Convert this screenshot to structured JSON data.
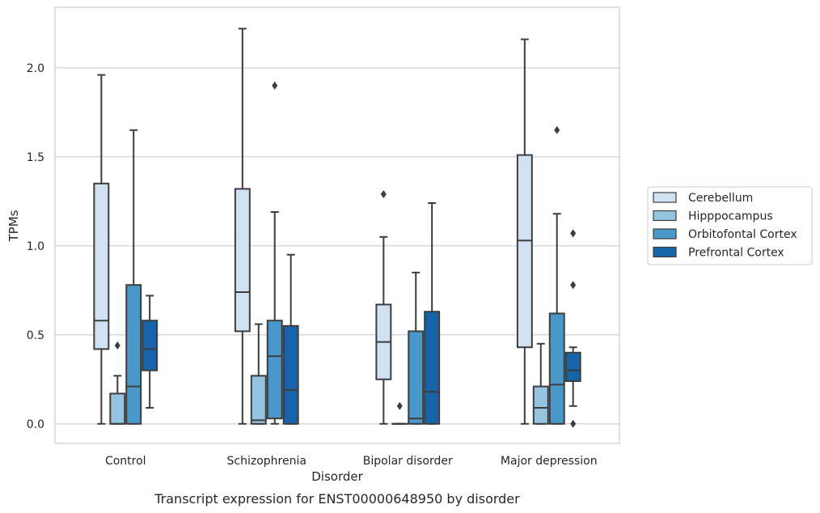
{
  "chart_data": {
    "type": "boxplot",
    "caption": "Transcript expression for ENST00000648950 by disorder",
    "xlabel": "Disorder",
    "ylabel": "TPMs",
    "ylim": [
      -0.11,
      2.34
    ],
    "yticks": [
      0.0,
      0.5,
      1.0,
      1.5,
      2.0
    ],
    "ytick_labels": [
      "0.0",
      "0.5",
      "1.0",
      "1.5",
      "2.0"
    ],
    "grid": "horizontal",
    "legend_position": "right",
    "categories": [
      "Control",
      "Schizophrenia",
      "Bipolar disorder",
      "Major depression"
    ],
    "series": [
      {
        "name": "Cerebellum",
        "color": "#d0e1f2",
        "boxes": [
          {
            "whisker_low": 0.0,
            "q1": 0.42,
            "median": 0.58,
            "q3": 1.35,
            "whisker_high": 1.96,
            "outliers": []
          },
          {
            "whisker_low": 0.0,
            "q1": 0.52,
            "median": 0.74,
            "q3": 1.32,
            "whisker_high": 2.22,
            "outliers": []
          },
          {
            "whisker_low": 0.0,
            "q1": 0.25,
            "median": 0.46,
            "q3": 0.67,
            "whisker_high": 1.05,
            "outliers": [
              1.29
            ]
          },
          {
            "whisker_low": 0.0,
            "q1": 0.43,
            "median": 1.03,
            "q3": 1.51,
            "whisker_high": 2.16,
            "outliers": []
          }
        ]
      },
      {
        "name": "Hipppocampus",
        "color": "#94c4df",
        "boxes": [
          {
            "whisker_low": 0.0,
            "q1": 0.0,
            "median": 0.0,
            "q3": 0.17,
            "whisker_high": 0.27,
            "outliers": [
              0.44
            ]
          },
          {
            "whisker_low": 0.0,
            "q1": 0.0,
            "median": 0.02,
            "q3": 0.27,
            "whisker_high": 0.56,
            "outliers": []
          },
          {
            "whisker_low": 0.0,
            "q1": 0.0,
            "median": 0.0,
            "q3": 0.0,
            "whisker_high": 0.0,
            "outliers": [
              0.1
            ]
          },
          {
            "whisker_low": 0.0,
            "q1": 0.0,
            "median": 0.09,
            "q3": 0.21,
            "whisker_high": 0.45,
            "outliers": []
          }
        ]
      },
      {
        "name": "Orbitofontal Cortex",
        "color": "#4a98c9",
        "boxes": [
          {
            "whisker_low": 0.0,
            "q1": 0.0,
            "median": 0.21,
            "q3": 0.78,
            "whisker_high": 1.65,
            "outliers": []
          },
          {
            "whisker_low": 0.0,
            "q1": 0.03,
            "median": 0.38,
            "q3": 0.58,
            "whisker_high": 1.19,
            "outliers": [
              1.9
            ]
          },
          {
            "whisker_low": 0.0,
            "q1": 0.0,
            "median": 0.03,
            "q3": 0.52,
            "whisker_high": 0.85,
            "outliers": []
          },
          {
            "whisker_low": 0.0,
            "q1": 0.0,
            "median": 0.22,
            "q3": 0.62,
            "whisker_high": 1.18,
            "outliers": [
              1.65
            ]
          }
        ]
      },
      {
        "name": "Prefrontal Cortex",
        "color": "#1764ab",
        "boxes": [
          {
            "whisker_low": 0.09,
            "q1": 0.3,
            "median": 0.42,
            "q3": 0.58,
            "whisker_high": 0.72,
            "outliers": []
          },
          {
            "whisker_low": 0.0,
            "q1": 0.0,
            "median": 0.19,
            "q3": 0.55,
            "whisker_high": 0.95,
            "outliers": []
          },
          {
            "whisker_low": 0.0,
            "q1": 0.0,
            "median": 0.18,
            "q3": 0.63,
            "whisker_high": 1.24,
            "outliers": []
          },
          {
            "whisker_low": 0.1,
            "q1": 0.24,
            "median": 0.3,
            "q3": 0.4,
            "whisker_high": 0.43,
            "outliers": [
              0.0,
              0.78,
              1.07
            ]
          }
        ]
      }
    ]
  }
}
